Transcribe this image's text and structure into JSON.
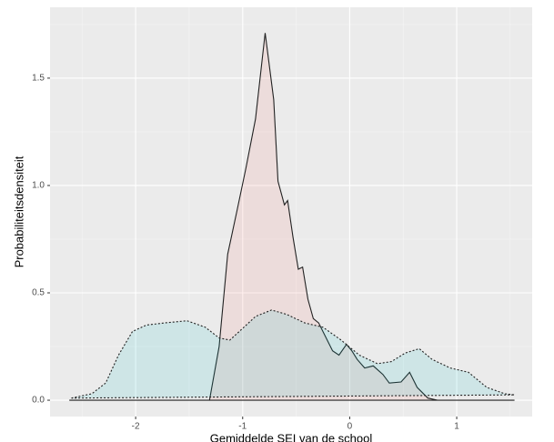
{
  "chart_data": {
    "type": "area",
    "x_label": "Gemiddelde SEI van de school",
    "y_label": "Probabiliteitsdensiteit",
    "xlim": [
      -2.8,
      1.705
    ],
    "ylim": [
      -0.076,
      1.83
    ],
    "xticks": [
      -2,
      -1,
      0,
      1
    ],
    "yticks": [
      {
        "value": 0,
        "label": "0.0"
      },
      0.5,
      {
        "value": 1,
        "label": "1.0"
      },
      1.5
    ],
    "grid": true,
    "series": [
      {
        "color": "#F8766D",
        "line_style": "solid",
        "x": [
          -2.62,
          -1.31,
          -1.22,
          -1.14,
          -1.05,
          -0.97,
          -0.88,
          -0.79,
          -0.71,
          -0.67,
          -0.61,
          -0.58,
          -0.53,
          -0.48,
          -0.44,
          -0.39,
          -0.34,
          -0.29,
          -0.23,
          -0.16,
          -0.1,
          -0.03,
          0.02,
          0.07,
          0.14,
          0.22,
          0.31,
          0.37,
          0.48,
          0.56,
          0.63,
          0.73,
          0.82,
          1.54
        ],
        "values": [
          0,
          0,
          0.25,
          0.68,
          0.89,
          1.08,
          1.31,
          1.71,
          1.4,
          1.02,
          0.91,
          0.93,
          0.76,
          0.61,
          0.62,
          0.47,
          0.38,
          0.36,
          0.3,
          0.23,
          0.21,
          0.26,
          0.23,
          0.19,
          0.15,
          0.16,
          0.12,
          0.08,
          0.085,
          0.13,
          0.06,
          0.01,
          0,
          0
        ]
      },
      {
        "color": "#00BFC4",
        "line_style": "dotted",
        "x": [
          -2.6,
          -2.41,
          -2.28,
          -2.16,
          -2.03,
          -1.9,
          -1.73,
          -1.52,
          -1.35,
          -1.22,
          -1.12,
          -1.01,
          -0.88,
          -0.73,
          -0.59,
          -0.42,
          -0.25,
          -0.08,
          0.09,
          0.26,
          0.39,
          0.52,
          0.65,
          0.77,
          0.94,
          1.11,
          1.28,
          1.45,
          1.54
        ],
        "values": [
          0.01,
          0.03,
          0.08,
          0.21,
          0.32,
          0.35,
          0.36,
          0.37,
          0.34,
          0.29,
          0.28,
          0.33,
          0.39,
          0.42,
          0.4,
          0.36,
          0.34,
          0.28,
          0.21,
          0.17,
          0.18,
          0.22,
          0.24,
          0.19,
          0.15,
          0.13,
          0.06,
          0.03,
          0.025
        ]
      }
    ]
  }
}
